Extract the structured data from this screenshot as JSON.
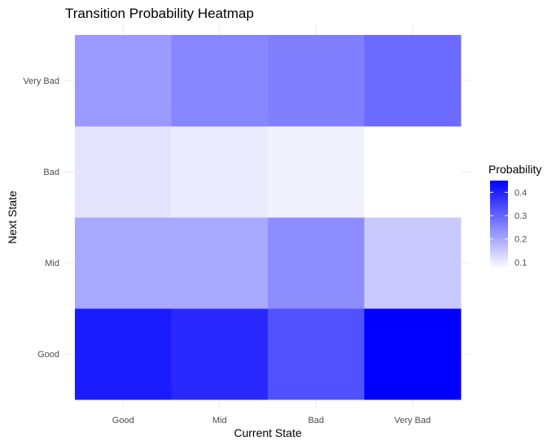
{
  "chart_data": {
    "type": "heatmap",
    "title": "Transition Probability Heatmap",
    "xlabel": "Current State",
    "ylabel": "Next State",
    "x_categories": [
      "Good",
      "Mid",
      "Bad",
      "Very Bad"
    ],
    "y_categories": [
      "Good",
      "Mid",
      "Bad",
      "Very Bad"
    ],
    "values": [
      [
        0.41,
        0.39,
        0.33,
        0.45
      ],
      [
        0.2,
        0.2,
        0.24,
        0.15
      ],
      [
        0.11,
        0.1,
        0.09,
        0.07
      ],
      [
        0.22,
        0.25,
        0.26,
        0.29
      ]
    ],
    "legend": {
      "title": "Probability",
      "ticks": [
        0.1,
        0.2,
        0.3,
        0.4
      ],
      "tick_labels": [
        "0.1",
        "0.2",
        "0.3",
        "0.4"
      ],
      "range": [
        0.07,
        0.45
      ],
      "low_color": "#ffffff",
      "high_color": "#0000ff",
      "placement": "right"
    },
    "grid": true
  }
}
